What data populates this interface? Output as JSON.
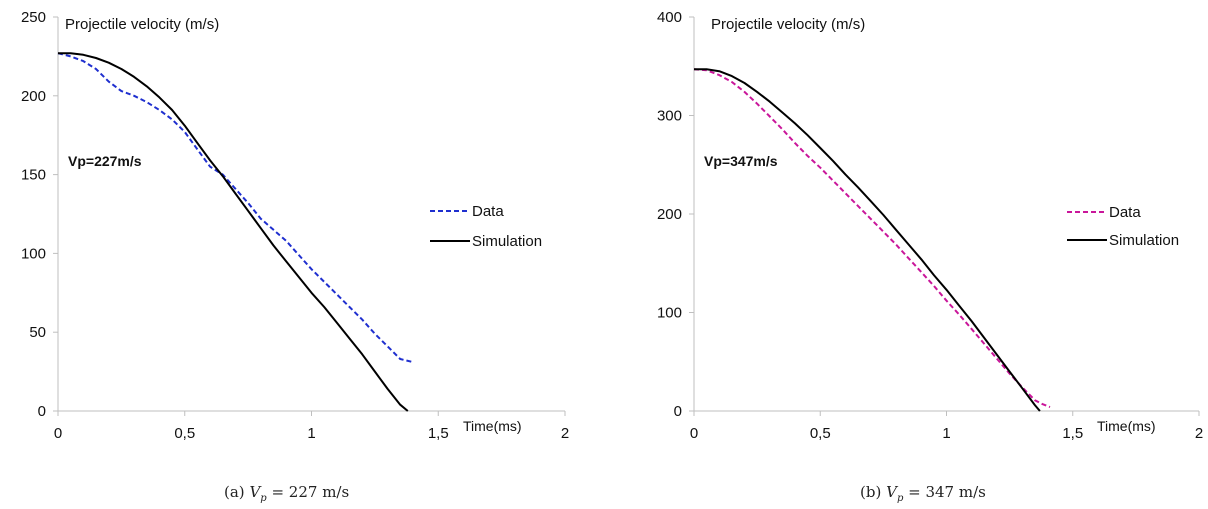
{
  "captions": [
    {
      "prefix": "(a)",
      "variable": "V",
      "subscript": "p",
      "value": "= 227 m/s"
    },
    {
      "prefix": "(b)",
      "variable": "V",
      "subscript": "p",
      "value": "= 347 m/s"
    }
  ],
  "chart_data": [
    {
      "type": "line",
      "ylabel": "Projectile velocity (m/s)",
      "xlabel": "Time(ms)",
      "annotation": "Vp=227m/s",
      "xlim": [
        0,
        2
      ],
      "ylim": [
        0,
        250
      ],
      "xticks": [
        "0",
        "0,5",
        "1",
        "1,5",
        "2"
      ],
      "yticks": [
        "0",
        "50",
        "100",
        "150",
        "200",
        "250"
      ],
      "xtick_values": [
        0,
        0.5,
        1,
        1.5,
        2
      ],
      "ytick_values": [
        0,
        50,
        100,
        150,
        200,
        250
      ],
      "legend_position": "right",
      "grid": false,
      "series": [
        {
          "name": "Data",
          "color": "#1f2fcf",
          "style": "dashed",
          "x": [
            0,
            0.05,
            0.1,
            0.15,
            0.2,
            0.25,
            0.3,
            0.35,
            0.4,
            0.45,
            0.5,
            0.55,
            0.6,
            0.65,
            0.7,
            0.75,
            0.8,
            0.85,
            0.9,
            0.95,
            1.0,
            1.05,
            1.1,
            1.15,
            1.2,
            1.25,
            1.3,
            1.35,
            1.4
          ],
          "y": [
            227,
            225,
            222,
            217,
            209,
            203,
            200,
            196,
            191,
            185,
            177,
            166,
            155,
            150,
            141,
            132,
            122,
            115,
            108,
            99,
            90,
            82,
            74,
            66,
            58,
            49,
            41,
            33,
            31
          ]
        },
        {
          "name": "Simulation",
          "color": "#000000",
          "style": "solid",
          "x": [
            0,
            0.05,
            0.1,
            0.15,
            0.2,
            0.25,
            0.3,
            0.35,
            0.4,
            0.45,
            0.5,
            0.55,
            0.6,
            0.65,
            0.7,
            0.75,
            0.8,
            0.85,
            0.9,
            0.95,
            1.0,
            1.05,
            1.1,
            1.15,
            1.2,
            1.25,
            1.3,
            1.35,
            1.38
          ],
          "y": [
            227,
            227,
            226,
            224,
            221,
            217,
            212,
            206,
            199,
            191,
            181,
            170,
            159,
            149,
            138,
            127,
            116,
            105,
            95,
            85,
            75,
            66,
            56,
            46,
            36,
            25,
            14,
            4,
            0
          ]
        }
      ]
    },
    {
      "type": "line",
      "ylabel": "Projectile velocity (m/s)",
      "xlabel": "Time(ms)",
      "annotation": "Vp=347m/s",
      "xlim": [
        0,
        2
      ],
      "ylim": [
        0,
        400
      ],
      "xticks": [
        "0",
        "0,5",
        "1",
        "1,5",
        "2"
      ],
      "yticks": [
        "0",
        "100",
        "200",
        "300",
        "400"
      ],
      "xtick_values": [
        0,
        0.5,
        1,
        1.5,
        2
      ],
      "ytick_values": [
        0,
        100,
        200,
        300,
        400
      ],
      "legend_position": "right",
      "grid": false,
      "series": [
        {
          "name": "Data",
          "color": "#c9169a",
          "style": "dashed",
          "x": [
            0,
            0.05,
            0.1,
            0.15,
            0.2,
            0.25,
            0.3,
            0.35,
            0.4,
            0.45,
            0.5,
            0.55,
            0.6,
            0.65,
            0.7,
            0.75,
            0.8,
            0.85,
            0.9,
            0.95,
            1.0,
            1.05,
            1.1,
            1.15,
            1.2,
            1.25,
            1.3,
            1.35,
            1.38,
            1.41
          ],
          "y": [
            347,
            346,
            341,
            334,
            324,
            312,
            299,
            286,
            272,
            259,
            247,
            234,
            221,
            208,
            195,
            182,
            169,
            155,
            141,
            127,
            112,
            98,
            83,
            68,
            53,
            38,
            24,
            11,
            7,
            4
          ]
        },
        {
          "name": "Simulation",
          "color": "#000000",
          "style": "solid",
          "x": [
            0,
            0.05,
            0.1,
            0.15,
            0.2,
            0.25,
            0.3,
            0.35,
            0.4,
            0.45,
            0.5,
            0.55,
            0.6,
            0.65,
            0.7,
            0.75,
            0.8,
            0.85,
            0.9,
            0.95,
            1.0,
            1.05,
            1.1,
            1.15,
            1.2,
            1.25,
            1.3,
            1.35,
            1.37
          ],
          "y": [
            347,
            347,
            345,
            340,
            333,
            324,
            314,
            303,
            292,
            280,
            267,
            254,
            240,
            227,
            213,
            199,
            184,
            169,
            154,
            138,
            123,
            107,
            91,
            74,
            57,
            40,
            23,
            6,
            0
          ]
        }
      ]
    }
  ]
}
